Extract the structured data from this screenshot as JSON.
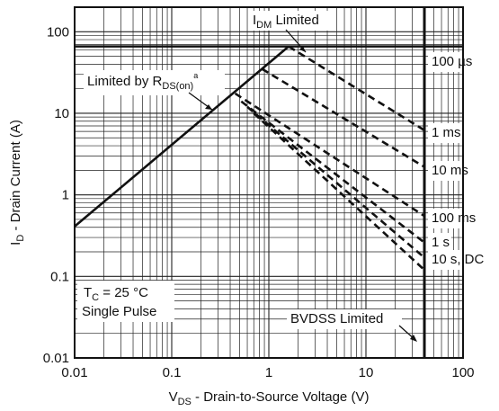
{
  "chart_data": {
    "type": "line",
    "xscale": "log",
    "yscale": "log",
    "xlim": [
      0.01,
      100
    ],
    "ylim": [
      0.01,
      200
    ],
    "grid": true,
    "x_ticks": [
      "0.01",
      "0.1",
      "1",
      "10",
      "100"
    ],
    "y_ticks": [
      "100",
      "10",
      "1",
      "0.1",
      "0.01"
    ],
    "x_ticks_values": [
      0.01,
      0.1,
      1,
      10,
      100
    ],
    "y_ticks_values": [
      100,
      10,
      1,
      0.1,
      0.01
    ],
    "xlabel": {
      "main": "V",
      "sub": "DS",
      "rest": " - Drain-to-Source Voltage (V)"
    },
    "ylabel": {
      "main": "I",
      "sub": "D",
      "rest": " - Drain Current (A)"
    },
    "series": [
      {
        "name": "Limited by R",
        "style": "solid",
        "x": [
          0.01,
          1.6
        ],
        "y": [
          0.41,
          66
        ]
      },
      {
        "name": "100 µs",
        "style": "dashed",
        "x": [
          1.6,
          40
        ],
        "y": [
          66,
          6.2
        ]
      },
      {
        "name": "1 ms",
        "style": "dashed",
        "x": [
          0.85,
          40
        ],
        "y": [
          35,
          2.2
        ]
      },
      {
        "name": "10 ms",
        "style": "dashed",
        "x": [
          0.45,
          40
        ],
        "y": [
          17.5,
          0.55
        ]
      },
      {
        "name": "100 ms",
        "style": "dashed",
        "x": [
          0.52,
          40
        ],
        "y": [
          14,
          0.26
        ]
      },
      {
        "name": "1 s",
        "style": "dashed",
        "x": [
          0.6,
          40
        ],
        "y": [
          12,
          0.17
        ]
      },
      {
        "name": "10 s, DC",
        "style": "dashed",
        "x": [
          0.7,
          40
        ],
        "y": [
          10,
          0.12
        ]
      }
    ],
    "limits": {
      "idm_current": 66,
      "bvdss_voltage": 40
    },
    "annotations": {
      "idm": {
        "main": "I",
        "sub": "DM",
        "rest": " Limited"
      },
      "rds": {
        "main": "Limited by R",
        "sub": "DS(on)",
        "sup": "a"
      },
      "bvdss": "BVDSS Limited",
      "tc": {
        "main": "T",
        "sub": "C",
        "rest": " = 25 °C"
      },
      "pulse": "Single Pulse",
      "curve_labels": [
        "100 µs",
        "1 ms",
        "10 ms",
        "100 ms",
        "1 s",
        "10 s, DC"
      ]
    }
  }
}
